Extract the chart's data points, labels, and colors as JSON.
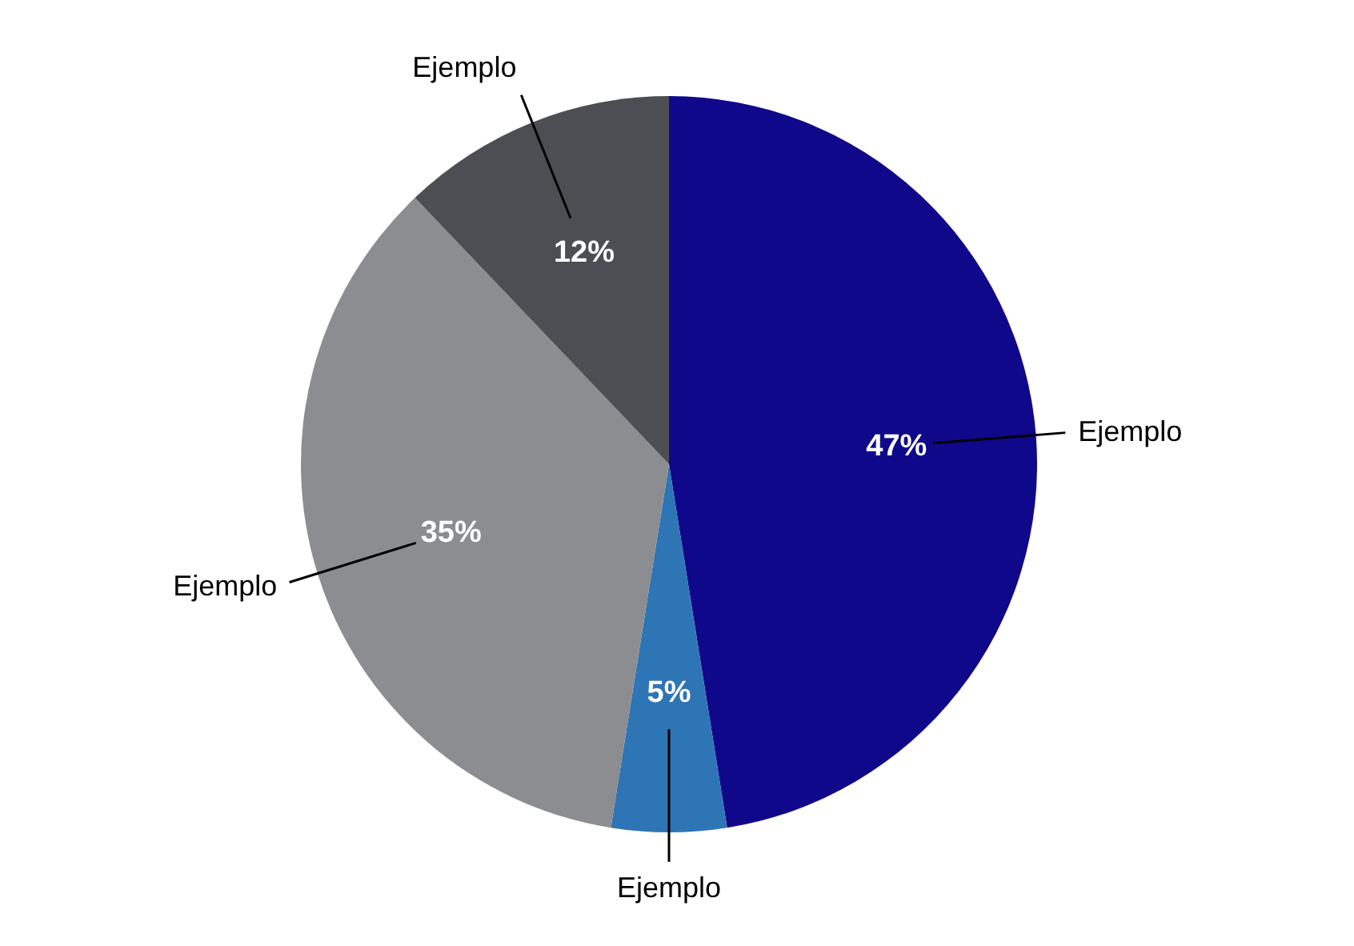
{
  "chart_data": {
    "type": "pie",
    "categories": [
      "Ejemplo",
      "Ejemplo",
      "Ejemplo",
      "Ejemplo"
    ],
    "values": [
      47,
      5,
      35,
      12
    ],
    "colors": [
      "#10088a",
      "#2e75b6",
      "#8c8d90",
      "#4d4e53"
    ],
    "value_labels": [
      "47%",
      "5%",
      "35%",
      "12%"
    ]
  }
}
